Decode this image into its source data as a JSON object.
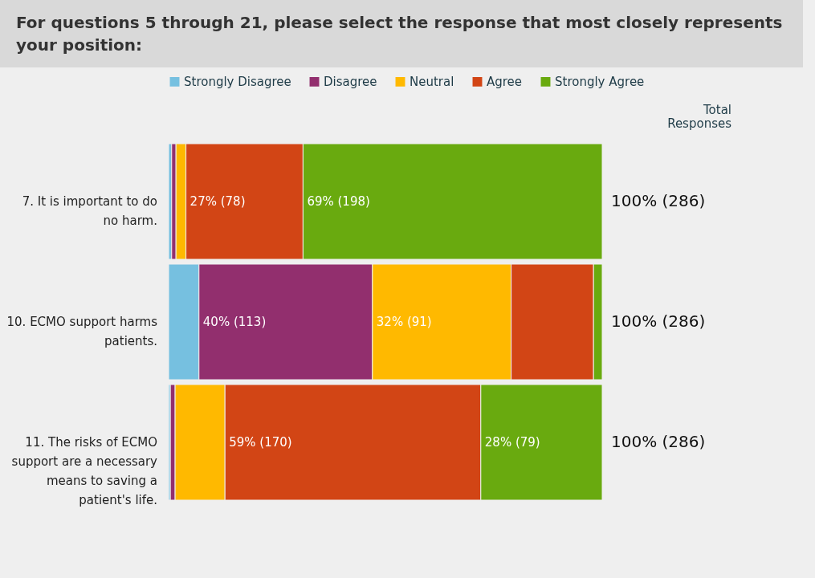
{
  "chart_data": {
    "type": "bar",
    "orientation": "horizontal",
    "stacked": true,
    "legend": "top",
    "title": "For questions 5 through 21, please select the response that most closely represents your position:",
    "categories": [
      "7.  It is important to do no harm.",
      "10.  ECMO support harms patients.",
      "11.  The risks of ECMO support are a necessary means to saving a patient's life."
    ],
    "series": [
      {
        "name": "Strongly Disagree",
        "color": "#76c0e0",
        "values": [
          0.7,
          7,
          0.4
        ],
        "value_labels": [
          null,
          null,
          null
        ]
      },
      {
        "name": "Disagree",
        "color": "#922f6e",
        "values": [
          1,
          40,
          1.1
        ],
        "value_labels": [
          null,
          "40% (113)",
          null
        ]
      },
      {
        "name": "Neutral",
        "color": "#ffb900",
        "values": [
          2.3,
          32,
          11.5
        ],
        "value_labels": [
          null,
          "32% (91)",
          null
        ]
      },
      {
        "name": "Agree",
        "color": "#d24515",
        "values": [
          27,
          19,
          59
        ],
        "value_labels": [
          "27% (78)",
          null,
          "59% (170)"
        ]
      },
      {
        "name": "Strongly Agree",
        "color": "#69aa0f",
        "values": [
          69,
          2,
          28
        ],
        "value_labels": [
          "69% (198)",
          null,
          "28% (79)"
        ]
      }
    ],
    "totals": [
      "100% (286)",
      "100% (286)",
      "100% (286)"
    ],
    "annotations": [
      "Total Responses"
    ]
  }
}
